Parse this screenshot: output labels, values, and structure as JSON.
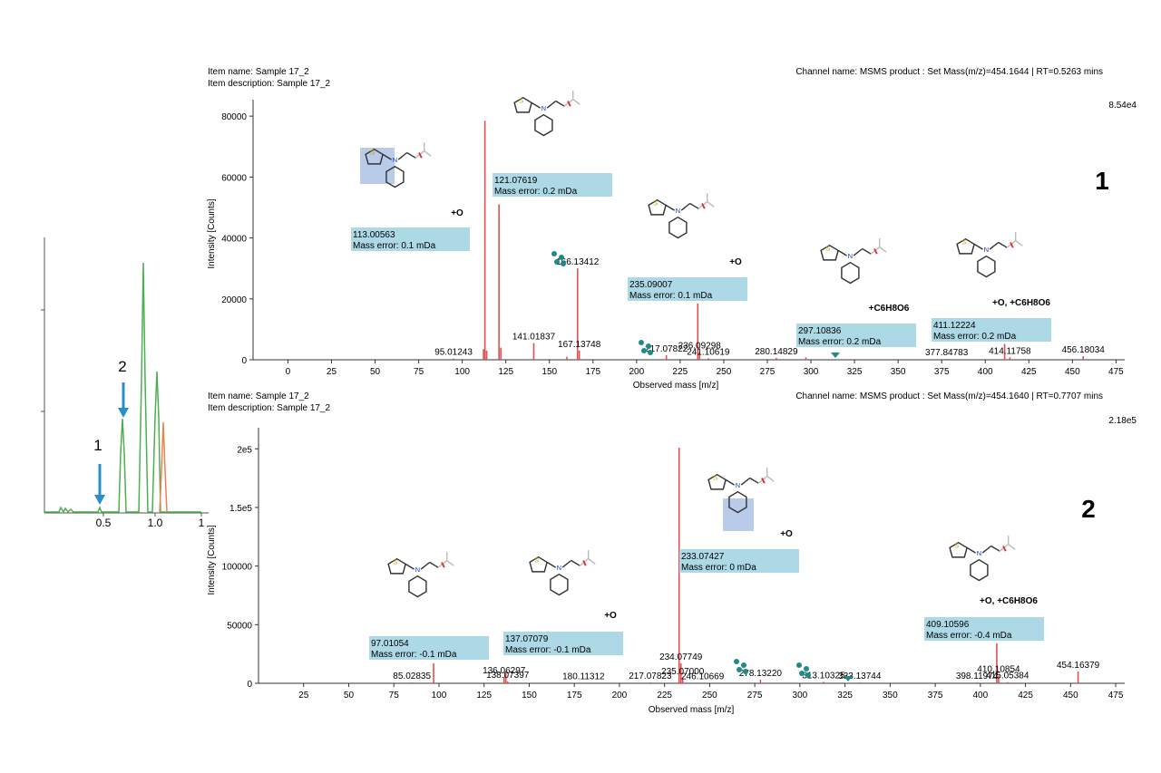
{
  "chromatogram": {
    "arrow_labels": [
      "1",
      "2"
    ],
    "x_ticks": [
      "0.5",
      "1.0",
      "1"
    ]
  },
  "panels": [
    {
      "item_name": "Item name: Sample 17_2",
      "item_description": "Item description: Sample 17_2",
      "channel_name": "Channel name: MSMS product : Set Mass(m/z)=454.1644 | RT=0.5263 mins",
      "max_intensity": "8.54e4",
      "panel_number": "1",
      "y_label": "Intensity [Counts]",
      "x_label": "Observed mass [m/z]",
      "annotation_boxes": [
        {
          "mass": "113.00563",
          "error": "Mass error: 0.1 mDa"
        },
        {
          "mass": "121.07619",
          "error": "Mass error: 0.2 mDa"
        },
        {
          "mass": "235.09007",
          "error": "Mass error: 0.1 mDa"
        },
        {
          "mass": "297.10836",
          "error": "Mass error: 0.2 mDa"
        },
        {
          "mass": "411.12224",
          "error": "Mass error: 0.2 mDa"
        }
      ],
      "modifications": [
        "+O",
        "+O",
        "+C6H8O6",
        "+O, +C6H8O6"
      ]
    },
    {
      "item_name": "Item name: Sample 17_2",
      "item_description": "Item description: Sample 17_2",
      "channel_name": "Channel name: MSMS product : Set Mass(m/z)=454.1640 | RT=0.7707 mins",
      "max_intensity": "2.18e5",
      "panel_number": "2",
      "y_label": "Intensity [Counts]",
      "x_label": "Observed mass [m/z]",
      "annotation_boxes": [
        {
          "mass": "97.01054",
          "error": "Mass error: -0.1 mDa"
        },
        {
          "mass": "137.07079",
          "error": "Mass error: -0.1 mDa"
        },
        {
          "mass": "233.07427",
          "error": "Mass error: 0 mDa"
        },
        {
          "mass": "409.10596",
          "error": "Mass error: -0.4 mDa"
        }
      ],
      "modifications": [
        "+O",
        "+O",
        "+O, +C6H8O6"
      ]
    }
  ],
  "chart_data": [
    {
      "type": "bar",
      "title": "",
      "xlabel": "Observed mass [m/z]",
      "ylabel": "Intensity [Counts]",
      "xlim": [
        -20,
        480
      ],
      "ylim": [
        0,
        85400
      ],
      "x_ticks": [
        0,
        25,
        50,
        75,
        100,
        125,
        150,
        175,
        200,
        225,
        250,
        275,
        300,
        325,
        350,
        375,
        400,
        425,
        450,
        475
      ],
      "y_ticks": [
        {
          "v": 0,
          "label": "0"
        },
        {
          "v": 20000,
          "label": "20000"
        },
        {
          "v": 40000,
          "label": "40000"
        },
        {
          "v": 60000,
          "label": "60000"
        },
        {
          "v": 80000,
          "label": "80000"
        }
      ],
      "peaks": [
        {
          "x": 95.01243,
          "y": 400,
          "label": "95.01243"
        },
        {
          "x": 112.2,
          "y": 3500,
          "label": ""
        },
        {
          "x": 113.00563,
          "y": 78500,
          "label": ""
        },
        {
          "x": 114.0,
          "y": 3000,
          "label": ""
        },
        {
          "x": 121.07619,
          "y": 51000,
          "label": ""
        },
        {
          "x": 122.1,
          "y": 4000,
          "label": ""
        },
        {
          "x": 141.01837,
          "y": 5500,
          "label": "141.01837"
        },
        {
          "x": 160.0,
          "y": 1000,
          "label": ""
        },
        {
          "x": 166.13412,
          "y": 30000,
          "label": "166.13412"
        },
        {
          "x": 167.13748,
          "y": 3000,
          "label": "167.13748"
        },
        {
          "x": 217.07822,
          "y": 1500,
          "label": "217.07822"
        },
        {
          "x": 235.09007,
          "y": 18500,
          "label": ""
        },
        {
          "x": 236.09298,
          "y": 2500,
          "label": "236.09298"
        },
        {
          "x": 241.10619,
          "y": 500,
          "label": "241.10619"
        },
        {
          "x": 280.14829,
          "y": 600,
          "label": "280.14829"
        },
        {
          "x": 297.10836,
          "y": 800,
          "label": ""
        },
        {
          "x": 377.84783,
          "y": 300,
          "label": "377.84783"
        },
        {
          "x": 411.12224,
          "y": 5200,
          "label": ""
        },
        {
          "x": 414.11758,
          "y": 800,
          "label": "414.11758"
        },
        {
          "x": 456.18034,
          "y": 1200,
          "label": "456.18034"
        }
      ]
    },
    {
      "type": "bar",
      "title": "",
      "xlabel": "Observed mass [m/z]",
      "ylabel": "Intensity [Counts]",
      "xlim": [
        0,
        480
      ],
      "ylim": [
        0,
        218000
      ],
      "x_ticks": [
        25,
        50,
        75,
        100,
        125,
        150,
        175,
        200,
        225,
        250,
        275,
        300,
        325,
        350,
        375,
        400,
        425,
        450,
        475
      ],
      "y_ticks": [
        {
          "v": 0,
          "label": "0"
        },
        {
          "v": 50000,
          "label": "50000"
        },
        {
          "v": 100000,
          "label": "100000"
        },
        {
          "v": 150000,
          "label": "1.5e5"
        },
        {
          "v": 200000,
          "label": "2e5"
        }
      ],
      "peaks": [
        {
          "x": 85.02835,
          "y": 800,
          "label": "85.02835"
        },
        {
          "x": 97.01054,
          "y": 17000,
          "label": ""
        },
        {
          "x": 136.06297,
          "y": 5500,
          "label": "136.06297"
        },
        {
          "x": 137.07079,
          "y": 9000,
          "label": ""
        },
        {
          "x": 138.07397,
          "y": 1500,
          "label": "138.07397"
        },
        {
          "x": 180.11312,
          "y": 500,
          "label": "180.11312"
        },
        {
          "x": 217.07823,
          "y": 800,
          "label": "217.07823"
        },
        {
          "x": 233.07427,
          "y": 201000,
          "label": ""
        },
        {
          "x": 234.07749,
          "y": 17000,
          "label": "234.07749"
        },
        {
          "x": 235.07,
          "y": 4500,
          "label": "235.07000"
        },
        {
          "x": 246.10669,
          "y": 500,
          "label": "246.10669"
        },
        {
          "x": 278.1322,
          "y": 3000,
          "label": "278.13220"
        },
        {
          "x": 313.10325,
          "y": 1200,
          "label": "313.10325"
        },
        {
          "x": 333.13744,
          "y": 800,
          "label": "333.13744"
        },
        {
          "x": 398.11974,
          "y": 800,
          "label": "398.11974"
        },
        {
          "x": 409.10596,
          "y": 34000,
          "label": ""
        },
        {
          "x": 410.10854,
          "y": 6500,
          "label": "410.10854"
        },
        {
          "x": 415.05384,
          "y": 1000,
          "label": "415.05384"
        },
        {
          "x": 454.16379,
          "y": 10000,
          "label": "454.16379"
        }
      ]
    }
  ]
}
